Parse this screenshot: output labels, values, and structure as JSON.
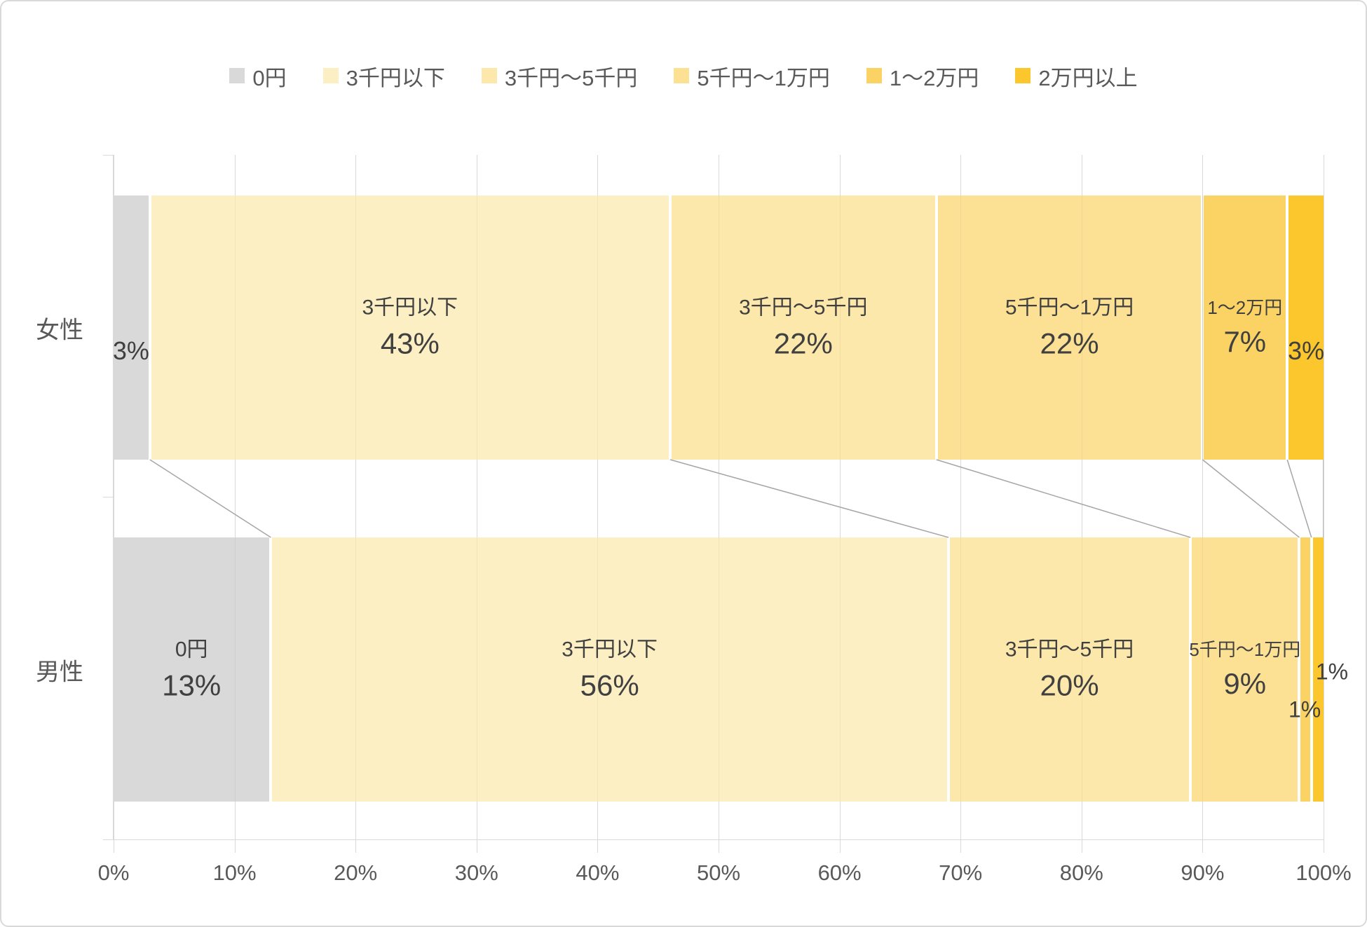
{
  "chart_data": {
    "type": "bar",
    "subtype": "stacked-100-horizontal",
    "title": "",
    "xlabel": "",
    "ylabel": "",
    "x_range": [
      0,
      100
    ],
    "grid": true,
    "legend_position": "top",
    "categories": [
      "女性",
      "男性"
    ],
    "series_names": [
      "0円",
      "3千円以下",
      "3千円～5千円",
      "5千円～1万円",
      "1～2万円",
      "2万円以上"
    ],
    "series_colors": [
      "#D9D9D9",
      "#FCEFC3",
      "#FCE8AB",
      "#FCE093",
      "#FBD364",
      "#FCC62D"
    ],
    "series": [
      {
        "name": "0円",
        "values": [
          3,
          13
        ]
      },
      {
        "name": "3千円以下",
        "values": [
          43,
          56
        ]
      },
      {
        "name": "3千円～5千円",
        "values": [
          22,
          20
        ]
      },
      {
        "name": "5千円～1万円",
        "values": [
          22,
          9
        ]
      },
      {
        "name": "1～2万円",
        "values": [
          7,
          1
        ]
      },
      {
        "name": "2万円以上",
        "values": [
          3,
          1
        ]
      }
    ],
    "rows": [
      {
        "category": "女性",
        "values": [
          3,
          43,
          22,
          22,
          7,
          3
        ],
        "labels": [
          {
            "name": null,
            "pct": "3%",
            "pct_size": "md",
            "placement": "pct-line"
          },
          {
            "name": "3千円以下",
            "pct": "43%",
            "pct_size": "lg",
            "placement": "inside"
          },
          {
            "name": "3千円～5千円",
            "pct": "22%",
            "pct_size": "lg",
            "placement": "inside"
          },
          {
            "name": "5千円～1万円",
            "pct": "22%",
            "pct_size": "lg",
            "placement": "inside"
          },
          {
            "name": "1～2万円",
            "pct": "7%",
            "pct_size": "lg",
            "name_small": true,
            "placement": "inside"
          },
          {
            "name": null,
            "pct": "3%",
            "pct_size": "md",
            "placement": "pct-line"
          }
        ]
      },
      {
        "category": "男性",
        "values": [
          13,
          56,
          20,
          9,
          1,
          1
        ],
        "labels": [
          {
            "name": "0円",
            "pct": "13%",
            "pct_size": "lg",
            "placement": "inside"
          },
          {
            "name": "3千円以下",
            "pct": "56%",
            "pct_size": "lg",
            "placement": "inside"
          },
          {
            "name": "3千円～5千円",
            "pct": "20%",
            "pct_size": "lg",
            "placement": "inside"
          },
          {
            "name": "5千円～1万円",
            "pct": "9%",
            "pct_size": "lg",
            "name_small": true,
            "placement": "inside"
          },
          {
            "name": null,
            "pct": "1%",
            "pct_size": "sm",
            "placement": "outside-below"
          },
          {
            "name": null,
            "pct": "1%",
            "pct_size": "sm",
            "placement": "outside-right"
          }
        ]
      }
    ],
    "x_ticks": [
      "0%",
      "10%",
      "20%",
      "30%",
      "40%",
      "50%",
      "60%",
      "70%",
      "80%",
      "90%",
      "100%"
    ],
    "legend_entries": [
      "0円",
      "3千円以下",
      "3千円～5千円",
      "5千円～1万円",
      "1～2万円",
      "2万円以上"
    ]
  },
  "colors": {
    "background": "#FFFFFF",
    "border": "#D9D9D9",
    "gridline": "#D9D9D9",
    "connector_line": "#A6A6A6",
    "axis_text": "#595959",
    "label_text": "#404040"
  }
}
